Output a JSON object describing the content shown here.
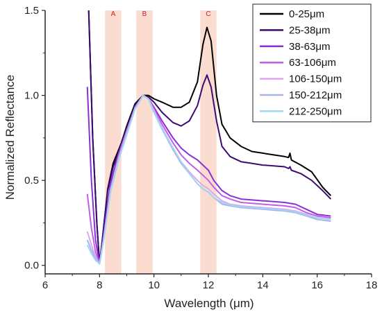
{
  "chart_data": {
    "type": "line",
    "title": "",
    "xlabel": "Wavelength (μm)",
    "ylabel": "Normalized Reflectance",
    "xlim": [
      6,
      18
    ],
    "ylim": [
      -0.05,
      1.5
    ],
    "xticks": [
      6,
      8,
      10,
      12,
      14,
      16,
      18
    ],
    "yticks": [
      0.0,
      0.5,
      1.0,
      1.5
    ],
    "ytick_labels": [
      "0.0",
      "0.5",
      "1.0",
      "1.5"
    ],
    "grid": false,
    "legend_position": "top-right",
    "bands": [
      {
        "label": "A",
        "from": 8.2,
        "to": 8.8,
        "color": "#f9d5c4"
      },
      {
        "label": "B",
        "from": 9.35,
        "to": 9.95,
        "color": "#f9d5c4"
      },
      {
        "label": "C",
        "from": 11.7,
        "to": 12.3,
        "color": "#f9d5c4"
      }
    ],
    "series": [
      {
        "name": "0-25μm",
        "color": "#000000",
        "points": [
          [
            7.6,
            1.5
          ],
          [
            7.75,
            0.75
          ],
          [
            7.9,
            0.25
          ],
          [
            8.0,
            0.01
          ],
          [
            8.1,
            0.15
          ],
          [
            8.3,
            0.45
          ],
          [
            8.5,
            0.6
          ],
          [
            8.8,
            0.72
          ],
          [
            9.0,
            0.82
          ],
          [
            9.3,
            0.95
          ],
          [
            9.6,
            1.0
          ],
          [
            9.8,
            1.0
          ],
          [
            10.0,
            0.98
          ],
          [
            10.3,
            0.96
          ],
          [
            10.7,
            0.93
          ],
          [
            11.0,
            0.93
          ],
          [
            11.3,
            0.96
          ],
          [
            11.6,
            1.08
          ],
          [
            11.8,
            1.3
          ],
          [
            11.95,
            1.4
          ],
          [
            12.1,
            1.32
          ],
          [
            12.3,
            1.0
          ],
          [
            12.5,
            0.83
          ],
          [
            12.8,
            0.75
          ],
          [
            13.2,
            0.7
          ],
          [
            13.6,
            0.67
          ],
          [
            14.0,
            0.66
          ],
          [
            14.4,
            0.65
          ],
          [
            14.8,
            0.64
          ],
          [
            14.95,
            0.635
          ],
          [
            15.0,
            0.66
          ],
          [
            15.05,
            0.62
          ],
          [
            15.4,
            0.59
          ],
          [
            15.8,
            0.55
          ],
          [
            16.2,
            0.46
          ],
          [
            16.5,
            0.41
          ]
        ]
      },
      {
        "name": "25-38μm",
        "color": "#3b0a73",
        "points": [
          [
            7.6,
            1.5
          ],
          [
            7.75,
            0.75
          ],
          [
            7.9,
            0.25
          ],
          [
            8.0,
            0.01
          ],
          [
            8.1,
            0.15
          ],
          [
            8.3,
            0.44
          ],
          [
            8.5,
            0.58
          ],
          [
            8.8,
            0.7
          ],
          [
            9.0,
            0.8
          ],
          [
            9.3,
            0.94
          ],
          [
            9.6,
            1.0
          ],
          [
            9.8,
            0.99
          ],
          [
            10.0,
            0.96
          ],
          [
            10.3,
            0.9
          ],
          [
            10.7,
            0.84
          ],
          [
            11.0,
            0.82
          ],
          [
            11.3,
            0.85
          ],
          [
            11.6,
            0.94
          ],
          [
            11.8,
            1.06
          ],
          [
            11.95,
            1.12
          ],
          [
            12.1,
            1.05
          ],
          [
            12.3,
            0.85
          ],
          [
            12.5,
            0.7
          ],
          [
            12.8,
            0.64
          ],
          [
            13.2,
            0.61
          ],
          [
            13.6,
            0.6
          ],
          [
            14.0,
            0.59
          ],
          [
            14.4,
            0.585
          ],
          [
            14.8,
            0.58
          ],
          [
            14.95,
            0.57
          ],
          [
            15.0,
            0.58
          ],
          [
            15.05,
            0.56
          ],
          [
            15.4,
            0.54
          ],
          [
            15.8,
            0.5
          ],
          [
            16.2,
            0.44
          ],
          [
            16.5,
            0.39
          ]
        ]
      },
      {
        "name": "38-63μm",
        "color": "#8a2fd6",
        "points": [
          [
            7.55,
            1.05
          ],
          [
            7.7,
            0.5
          ],
          [
            7.85,
            0.15
          ],
          [
            8.0,
            0.01
          ],
          [
            8.15,
            0.18
          ],
          [
            8.4,
            0.48
          ],
          [
            8.7,
            0.66
          ],
          [
            9.0,
            0.8
          ],
          [
            9.3,
            0.93
          ],
          [
            9.6,
            1.0
          ],
          [
            9.8,
            0.98
          ],
          [
            10.0,
            0.93
          ],
          [
            10.3,
            0.85
          ],
          [
            10.7,
            0.75
          ],
          [
            11.0,
            0.69
          ],
          [
            11.3,
            0.65
          ],
          [
            11.6,
            0.62
          ],
          [
            11.8,
            0.59
          ],
          [
            12.0,
            0.56
          ],
          [
            12.2,
            0.5
          ],
          [
            12.5,
            0.44
          ],
          [
            12.8,
            0.41
          ],
          [
            13.2,
            0.39
          ],
          [
            13.6,
            0.385
          ],
          [
            14.0,
            0.38
          ],
          [
            14.4,
            0.375
          ],
          [
            14.8,
            0.37
          ],
          [
            15.2,
            0.36
          ],
          [
            15.6,
            0.33
          ],
          [
            16.0,
            0.3
          ],
          [
            16.5,
            0.29
          ]
        ]
      },
      {
        "name": "63-106μm",
        "color": "#c15ee8",
        "points": [
          [
            7.55,
            0.42
          ],
          [
            7.7,
            0.22
          ],
          [
            7.85,
            0.08
          ],
          [
            8.0,
            0.01
          ],
          [
            8.15,
            0.16
          ],
          [
            8.4,
            0.45
          ],
          [
            8.7,
            0.64
          ],
          [
            9.0,
            0.79
          ],
          [
            9.3,
            0.93
          ],
          [
            9.6,
            1.0
          ],
          [
            9.8,
            0.98
          ],
          [
            10.0,
            0.92
          ],
          [
            10.3,
            0.83
          ],
          [
            10.7,
            0.72
          ],
          [
            11.0,
            0.65
          ],
          [
            11.3,
            0.6
          ],
          [
            11.6,
            0.56
          ],
          [
            11.8,
            0.53
          ],
          [
            12.0,
            0.5
          ],
          [
            12.2,
            0.46
          ],
          [
            12.5,
            0.41
          ],
          [
            12.8,
            0.39
          ],
          [
            13.2,
            0.37
          ],
          [
            13.6,
            0.365
          ],
          [
            14.0,
            0.36
          ],
          [
            14.4,
            0.355
          ],
          [
            14.8,
            0.35
          ],
          [
            15.2,
            0.34
          ],
          [
            15.6,
            0.31
          ],
          [
            16.0,
            0.29
          ],
          [
            16.5,
            0.28
          ]
        ]
      },
      {
        "name": "106-150μm",
        "color": "#e0a6ee",
        "points": [
          [
            7.55,
            0.2
          ],
          [
            7.7,
            0.12
          ],
          [
            7.85,
            0.05
          ],
          [
            8.0,
            0.01
          ],
          [
            8.15,
            0.15
          ],
          [
            8.4,
            0.44
          ],
          [
            8.7,
            0.63
          ],
          [
            9.0,
            0.78
          ],
          [
            9.3,
            0.92
          ],
          [
            9.6,
            1.0
          ],
          [
            9.8,
            0.98
          ],
          [
            10.0,
            0.91
          ],
          [
            10.3,
            0.81
          ],
          [
            10.7,
            0.69
          ],
          [
            11.0,
            0.61
          ],
          [
            11.3,
            0.55
          ],
          [
            11.6,
            0.5
          ],
          [
            11.8,
            0.47
          ],
          [
            12.0,
            0.45
          ],
          [
            12.2,
            0.42
          ],
          [
            12.5,
            0.38
          ],
          [
            12.8,
            0.36
          ],
          [
            13.2,
            0.35
          ],
          [
            13.6,
            0.345
          ],
          [
            14.0,
            0.34
          ],
          [
            14.4,
            0.335
          ],
          [
            14.8,
            0.33
          ],
          [
            15.2,
            0.32
          ],
          [
            15.6,
            0.3
          ],
          [
            16.0,
            0.28
          ],
          [
            16.5,
            0.27
          ]
        ]
      },
      {
        "name": "150-212μm",
        "color": "#a9b3ea",
        "points": [
          [
            7.55,
            0.15
          ],
          [
            7.7,
            0.09
          ],
          [
            7.85,
            0.04
          ],
          [
            8.0,
            0.01
          ],
          [
            8.15,
            0.15
          ],
          [
            8.4,
            0.43
          ],
          [
            8.7,
            0.62
          ],
          [
            9.0,
            0.77
          ],
          [
            9.3,
            0.92
          ],
          [
            9.6,
            1.0
          ],
          [
            9.8,
            0.98
          ],
          [
            10.0,
            0.9
          ],
          [
            10.3,
            0.8
          ],
          [
            10.7,
            0.68
          ],
          [
            11.0,
            0.6
          ],
          [
            11.3,
            0.54
          ],
          [
            11.6,
            0.48
          ],
          [
            11.8,
            0.45
          ],
          [
            12.0,
            0.43
          ],
          [
            12.2,
            0.4
          ],
          [
            12.5,
            0.36
          ],
          [
            12.8,
            0.35
          ],
          [
            13.2,
            0.34
          ],
          [
            13.6,
            0.335
          ],
          [
            14.0,
            0.33
          ],
          [
            14.4,
            0.325
          ],
          [
            14.8,
            0.32
          ],
          [
            15.2,
            0.31
          ],
          [
            15.6,
            0.29
          ],
          [
            16.0,
            0.27
          ],
          [
            16.5,
            0.26
          ]
        ]
      },
      {
        "name": "212-250μm",
        "color": "#9fd6f0",
        "points": [
          [
            7.55,
            0.12
          ],
          [
            7.7,
            0.07
          ],
          [
            7.85,
            0.03
          ],
          [
            8.0,
            0.01
          ],
          [
            8.15,
            0.15
          ],
          [
            8.4,
            0.43
          ],
          [
            8.7,
            0.62
          ],
          [
            9.0,
            0.77
          ],
          [
            9.3,
            0.92
          ],
          [
            9.6,
            1.0
          ],
          [
            9.8,
            0.98
          ],
          [
            10.0,
            0.9
          ],
          [
            10.3,
            0.8
          ],
          [
            10.7,
            0.69
          ],
          [
            11.0,
            0.61
          ],
          [
            11.3,
            0.54
          ],
          [
            11.6,
            0.48
          ],
          [
            11.8,
            0.45
          ],
          [
            12.0,
            0.43
          ],
          [
            12.2,
            0.4
          ],
          [
            12.5,
            0.37
          ],
          [
            12.8,
            0.355
          ],
          [
            13.2,
            0.345
          ],
          [
            13.6,
            0.34
          ],
          [
            14.0,
            0.335
          ],
          [
            14.4,
            0.33
          ],
          [
            14.8,
            0.325
          ],
          [
            15.2,
            0.315
          ],
          [
            15.6,
            0.295
          ],
          [
            16.0,
            0.28
          ],
          [
            16.5,
            0.27
          ]
        ]
      }
    ]
  }
}
